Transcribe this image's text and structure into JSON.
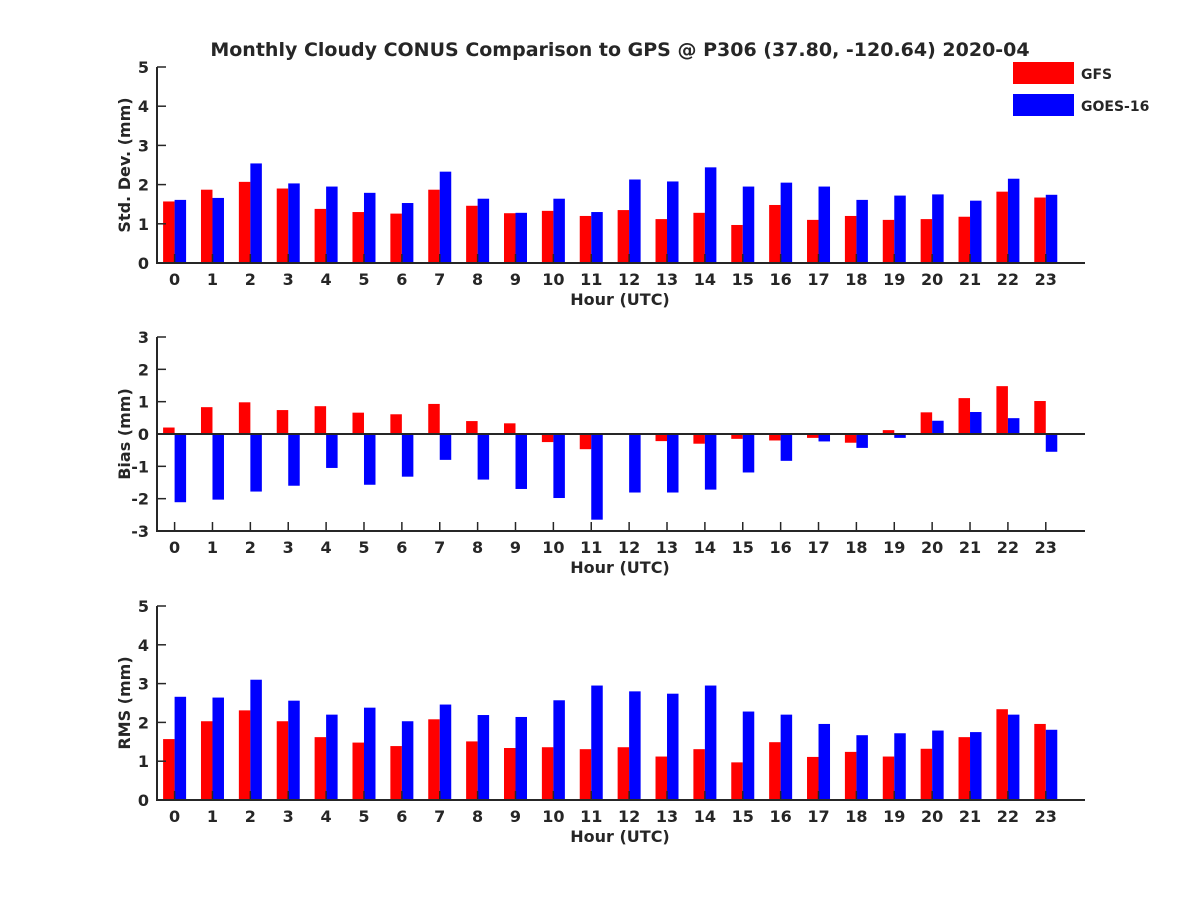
{
  "title": "Monthly Cloudy CONUS Comparison to GPS @ P306 (37.80, -120.64) 2020-04",
  "colors": {
    "gfs": "#ff0000",
    "goes": "#0000ff",
    "axis": "#262626"
  },
  "chart_data": [
    {
      "type": "bar",
      "ylabel": "Std. Dev. (mm)",
      "xlabel": "Hour (UTC)",
      "ylim": [
        0,
        5
      ],
      "yticks": [
        0,
        1,
        2,
        3,
        4,
        5
      ],
      "categories": [
        "0",
        "1",
        "2",
        "3",
        "4",
        "5",
        "6",
        "7",
        "8",
        "9",
        "10",
        "11",
        "12",
        "13",
        "14",
        "15",
        "16",
        "17",
        "18",
        "19",
        "20",
        "21",
        "22",
        "23"
      ],
      "legend": "top-right",
      "series": [
        {
          "name": "GFS",
          "color": "#ff0000",
          "values": [
            1.57,
            1.87,
            2.07,
            1.9,
            1.38,
            1.3,
            1.26,
            1.87,
            1.46,
            1.27,
            1.33,
            1.2,
            1.35,
            1.12,
            1.28,
            0.97,
            1.48,
            1.1,
            1.2,
            1.1,
            1.12,
            1.18,
            1.82,
            1.67
          ]
        },
        {
          "name": "GOES-16",
          "color": "#0000ff",
          "values": [
            1.61,
            1.66,
            2.54,
            2.03,
            1.95,
            1.79,
            1.53,
            2.33,
            1.64,
            1.28,
            1.64,
            1.3,
            2.13,
            2.08,
            2.44,
            1.95,
            2.05,
            1.95,
            1.61,
            1.72,
            1.75,
            1.59,
            2.15,
            1.74
          ]
        }
      ]
    },
    {
      "type": "bar",
      "ylabel": "Bias (mm)",
      "xlabel": "Hour (UTC)",
      "ylim": [
        -3,
        3
      ],
      "yticks": [
        -3,
        -2,
        -1,
        0,
        1,
        2,
        3
      ],
      "categories": [
        "0",
        "1",
        "2",
        "3",
        "4",
        "5",
        "6",
        "7",
        "8",
        "9",
        "10",
        "11",
        "12",
        "13",
        "14",
        "15",
        "16",
        "17",
        "18",
        "19",
        "20",
        "21",
        "22",
        "23"
      ],
      "series": [
        {
          "name": "GFS",
          "color": "#ff0000",
          "values": [
            0.2,
            0.83,
            0.98,
            0.74,
            0.86,
            0.66,
            0.61,
            0.93,
            0.4,
            0.33,
            -0.25,
            -0.47,
            -0.02,
            -0.22,
            -0.3,
            -0.15,
            -0.2,
            -0.12,
            -0.27,
            0.12,
            0.67,
            1.11,
            1.48,
            1.02
          ]
        },
        {
          "name": "GOES-16",
          "color": "#0000ff",
          "values": [
            -2.11,
            -2.03,
            -1.78,
            -1.6,
            -1.05,
            -1.57,
            -1.32,
            -0.8,
            -1.41,
            -1.7,
            -1.98,
            -2.65,
            -1.81,
            -1.81,
            -1.72,
            -1.19,
            -0.83,
            -0.23,
            -0.43,
            -0.12,
            0.41,
            0.68,
            0.49,
            -0.55
          ]
        }
      ]
    },
    {
      "type": "bar",
      "ylabel": "RMS (mm)",
      "xlabel": "Hour (UTC)",
      "ylim": [
        0,
        5
      ],
      "yticks": [
        0,
        1,
        2,
        3,
        4,
        5
      ],
      "categories": [
        "0",
        "1",
        "2",
        "3",
        "4",
        "5",
        "6",
        "7",
        "8",
        "9",
        "10",
        "11",
        "12",
        "13",
        "14",
        "15",
        "16",
        "17",
        "18",
        "19",
        "20",
        "21",
        "22",
        "23"
      ],
      "series": [
        {
          "name": "GFS",
          "color": "#ff0000",
          "values": [
            1.57,
            2.03,
            2.31,
            2.03,
            1.62,
            1.48,
            1.39,
            2.08,
            1.51,
            1.34,
            1.36,
            1.31,
            1.36,
            1.12,
            1.31,
            0.97,
            1.49,
            1.11,
            1.24,
            1.12,
            1.32,
            1.62,
            2.34,
            1.96
          ]
        },
        {
          "name": "GOES-16",
          "color": "#0000ff",
          "values": [
            2.66,
            2.64,
            3.1,
            2.56,
            2.2,
            2.38,
            2.03,
            2.46,
            2.19,
            2.14,
            2.57,
            2.95,
            2.8,
            2.74,
            2.95,
            2.28,
            2.2,
            1.96,
            1.67,
            1.72,
            1.79,
            1.75,
            2.2,
            1.81
          ]
        }
      ]
    }
  ]
}
